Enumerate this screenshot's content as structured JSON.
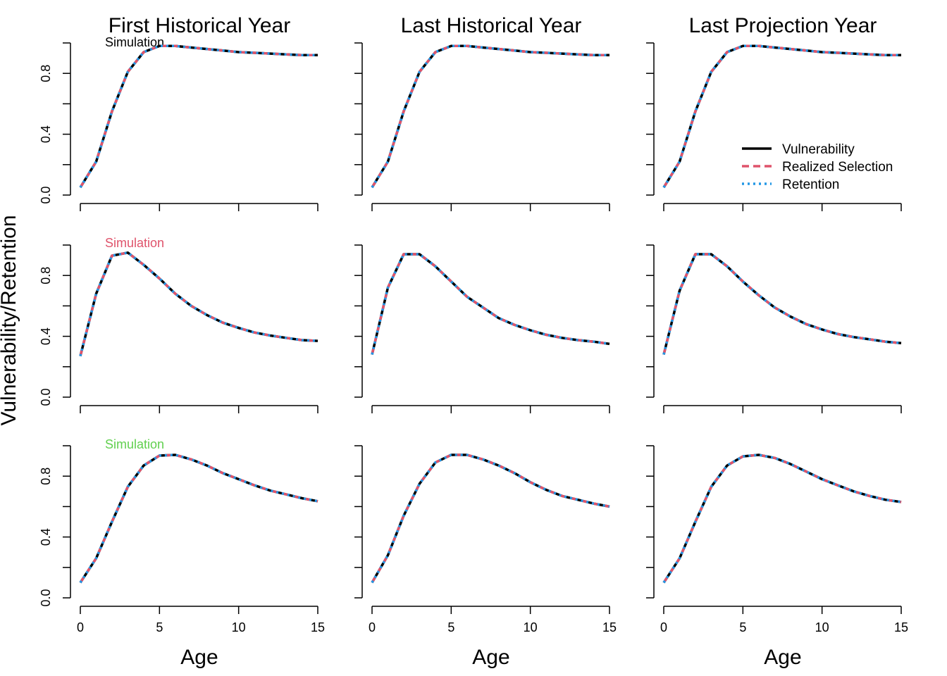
{
  "figure": {
    "ylabel": "Vulnerability/Retention",
    "xlabel": "Age",
    "col_titles": [
      "First Historical Year",
      "Last Historical Year",
      "Last Projection Year"
    ]
  },
  "legend": {
    "placement": "top-right panel, lower right",
    "entries": [
      {
        "label": "Vulnerability",
        "color": "#000000",
        "style": "solid"
      },
      {
        "label": "Realized Selection",
        "color": "#DF536B",
        "style": "dashed"
      },
      {
        "label": "Retention",
        "color": "#2297E6",
        "style": "dotted"
      }
    ]
  },
  "row_labels": [
    {
      "text": "Simulation",
      "color": "#000000"
    },
    {
      "text": "Simulation",
      "color": "#DF536B"
    },
    {
      "text": "Simulation",
      "color": "#61D04F"
    }
  ],
  "axes": {
    "x_ticks": [
      0,
      5,
      10,
      15
    ],
    "y_ticks": [
      "0.0",
      "0.4",
      "0.8"
    ],
    "y_tick_values": [
      0,
      0.2,
      0.4,
      0.6,
      0.8,
      1.0
    ],
    "xlim": [
      0,
      15
    ],
    "ylim": [
      0,
      1
    ]
  },
  "chart_data": {
    "type": "line",
    "x": [
      0,
      1,
      2,
      3,
      4,
      5,
      6,
      7,
      8,
      9,
      10,
      11,
      12,
      13,
      14,
      15
    ],
    "panels": [
      {
        "row": 0,
        "col": 0,
        "values": [
          0.05,
          0.22,
          0.55,
          0.81,
          0.94,
          0.98,
          0.98,
          0.97,
          0.96,
          0.95,
          0.94,
          0.935,
          0.93,
          0.925,
          0.92,
          0.92
        ]
      },
      {
        "row": 0,
        "col": 1,
        "values": [
          0.05,
          0.22,
          0.55,
          0.81,
          0.94,
          0.98,
          0.98,
          0.97,
          0.96,
          0.95,
          0.94,
          0.935,
          0.93,
          0.925,
          0.92,
          0.92
        ]
      },
      {
        "row": 0,
        "col": 2,
        "values": [
          0.05,
          0.22,
          0.55,
          0.81,
          0.94,
          0.98,
          0.98,
          0.97,
          0.96,
          0.95,
          0.94,
          0.935,
          0.93,
          0.925,
          0.92,
          0.92
        ]
      },
      {
        "row": 1,
        "col": 0,
        "values": [
          0.27,
          0.68,
          0.93,
          0.95,
          0.87,
          0.78,
          0.68,
          0.6,
          0.54,
          0.49,
          0.455,
          0.425,
          0.405,
          0.39,
          0.375,
          0.37
        ]
      },
      {
        "row": 1,
        "col": 1,
        "values": [
          0.28,
          0.72,
          0.94,
          0.94,
          0.86,
          0.76,
          0.66,
          0.59,
          0.52,
          0.475,
          0.44,
          0.41,
          0.39,
          0.375,
          0.365,
          0.35
        ]
      },
      {
        "row": 1,
        "col": 2,
        "values": [
          0.28,
          0.7,
          0.94,
          0.94,
          0.86,
          0.76,
          0.67,
          0.59,
          0.53,
          0.48,
          0.445,
          0.415,
          0.395,
          0.38,
          0.365,
          0.355
        ]
      },
      {
        "row": 2,
        "col": 0,
        "values": [
          0.1,
          0.26,
          0.5,
          0.73,
          0.87,
          0.935,
          0.94,
          0.91,
          0.87,
          0.82,
          0.78,
          0.74,
          0.705,
          0.68,
          0.655,
          0.635
        ]
      },
      {
        "row": 2,
        "col": 1,
        "values": [
          0.1,
          0.28,
          0.54,
          0.75,
          0.89,
          0.94,
          0.94,
          0.91,
          0.87,
          0.82,
          0.76,
          0.71,
          0.67,
          0.645,
          0.62,
          0.6
        ]
      },
      {
        "row": 2,
        "col": 2,
        "values": [
          0.1,
          0.26,
          0.5,
          0.73,
          0.87,
          0.93,
          0.94,
          0.92,
          0.88,
          0.83,
          0.78,
          0.74,
          0.7,
          0.67,
          0.645,
          0.63
        ]
      }
    ]
  }
}
